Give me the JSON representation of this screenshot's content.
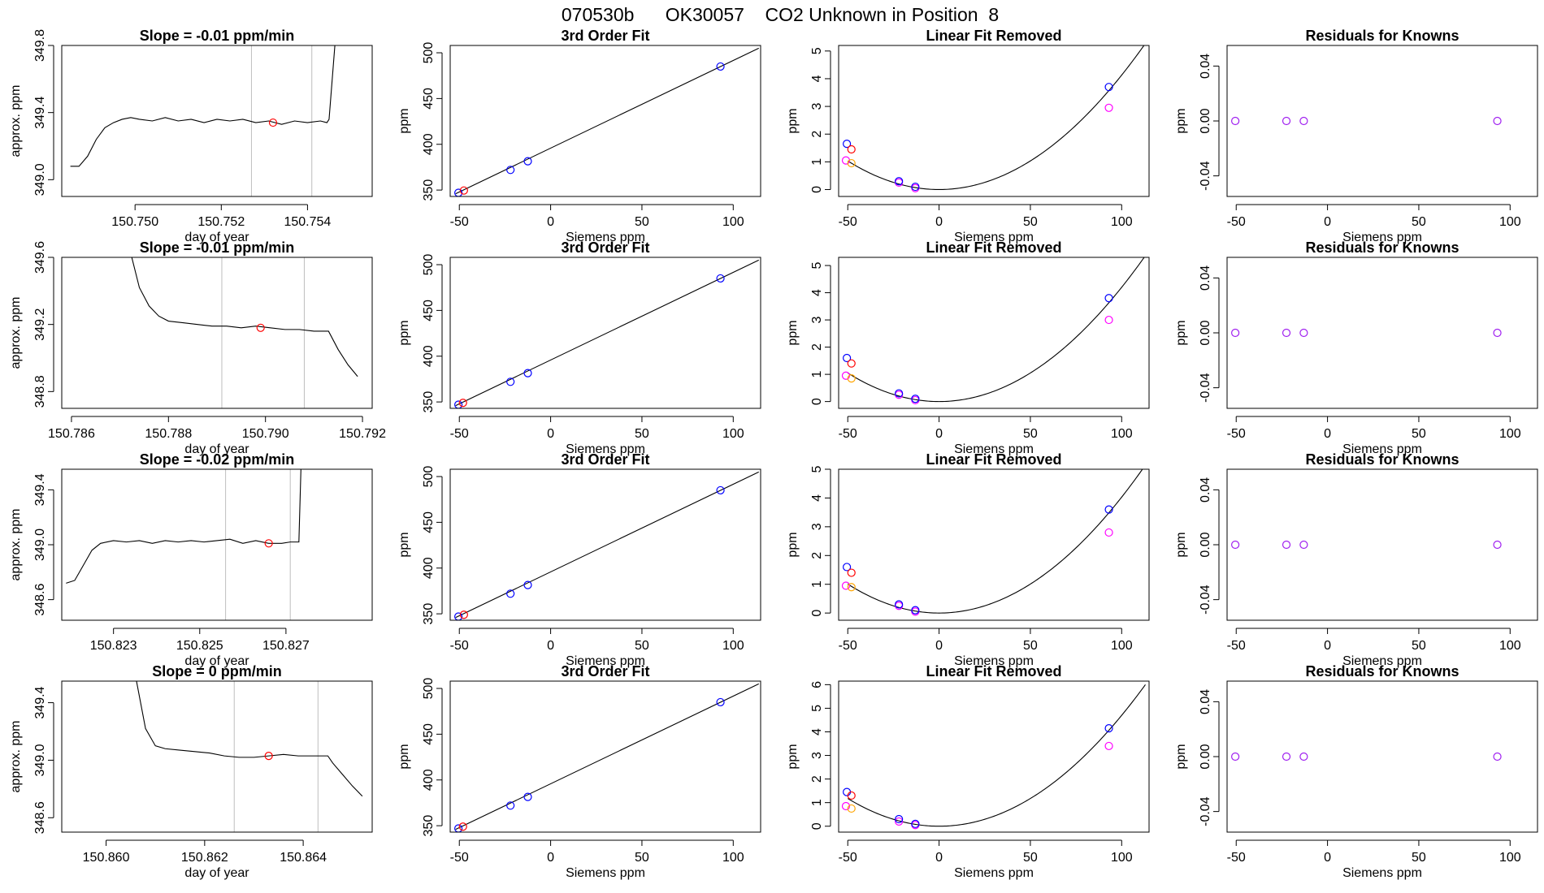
{
  "page_title": "070530b      OK30057    CO2 Unknown in Position  8",
  "colors": {
    "trace": "#000000",
    "window_line": "#bebebe",
    "standard": "#0000ff",
    "unknown": "#ff0000",
    "removed_fit": "#ff00ff",
    "orange_point": "#ffa500",
    "residual": "#a020f0"
  },
  "chart_data": [
    {
      "type": "line",
      "row": 1,
      "title": "Slope =  -0.01  ppm/min",
      "xlabel": "day of year",
      "ylabel": "approx. ppm",
      "xlim": [
        150.7483,
        150.7555
      ],
      "ylim": [
        348.9,
        349.8
      ],
      "xticks": [
        150.75,
        150.752,
        150.754
      ],
      "xtick_labels": [
        "150.750",
        "150.752",
        "150.754"
      ],
      "yticks": [
        349.0,
        349.4,
        349.8
      ],
      "ytick_labels": [
        "349.0",
        "349.4",
        "349.8"
      ],
      "window": [
        150.7527,
        150.7541
      ],
      "trace_x": [
        150.7485,
        150.7487,
        150.7489,
        150.7491,
        150.7493,
        150.7495,
        150.7497,
        150.7499,
        150.7501,
        150.7504,
        150.7507,
        150.751,
        150.7513,
        150.7516,
        150.7519,
        150.7522,
        150.7525,
        150.7528,
        150.7531,
        150.7534,
        150.7537,
        150.754,
        150.7543,
        150.75445,
        150.7545,
        150.75465
      ],
      "trace_y": [
        349.08,
        349.08,
        349.14,
        349.24,
        349.31,
        349.34,
        349.36,
        349.37,
        349.36,
        349.35,
        349.37,
        349.35,
        349.36,
        349.34,
        349.36,
        349.35,
        349.36,
        349.34,
        349.35,
        349.33,
        349.35,
        349.34,
        349.35,
        349.34,
        349.36,
        349.85
      ],
      "marker": {
        "x": 150.7532,
        "y": 349.34
      }
    },
    {
      "type": "line",
      "row": 2,
      "title": "Slope =  -0.01  ppm/min",
      "xlabel": "day of year",
      "ylabel": "approx. ppm",
      "xlim": [
        150.7858,
        150.7922
      ],
      "ylim": [
        348.7,
        349.6
      ],
      "xticks": [
        150.786,
        150.788,
        150.79,
        150.792
      ],
      "xtick_labels": [
        "150.786",
        "150.788",
        "150.790",
        "150.792"
      ],
      "yticks": [
        348.8,
        349.2,
        349.6
      ],
      "ytick_labels": [
        "348.8",
        "349.2",
        "349.6"
      ],
      "window": [
        150.7891,
        150.7908
      ],
      "trace_x": [
        150.7872,
        150.7874,
        150.7876,
        150.7878,
        150.788,
        150.7883,
        150.7886,
        150.7889,
        150.7892,
        150.7895,
        150.7898,
        150.7901,
        150.7904,
        150.7907,
        150.791,
        150.7913,
        150.7915,
        150.7917,
        150.7919
      ],
      "trace_y": [
        349.65,
        349.42,
        349.31,
        349.25,
        349.22,
        349.21,
        349.2,
        349.19,
        349.19,
        349.18,
        349.19,
        349.18,
        349.17,
        349.17,
        349.16,
        349.16,
        349.05,
        348.96,
        348.89
      ],
      "marker": {
        "x": 150.7899,
        "y": 349.18
      }
    },
    {
      "type": "line",
      "row": 3,
      "title": "Slope =  -0.02  ppm/min",
      "xlabel": "day of year",
      "ylabel": "approx. ppm",
      "xlim": [
        150.8218,
        150.829
      ],
      "ylim": [
        348.45,
        349.55
      ],
      "xticks": [
        150.823,
        150.825,
        150.827
      ],
      "xtick_labels": [
        "150.823",
        "150.825",
        "150.827"
      ],
      "yticks": [
        348.6,
        349.0,
        349.4
      ],
      "ytick_labels": [
        "348.6",
        "349.0",
        "349.4"
      ],
      "window": [
        150.8256,
        150.8271
      ],
      "trace_x": [
        150.8219,
        150.8221,
        150.8223,
        150.8225,
        150.8227,
        150.823,
        150.8233,
        150.8236,
        150.8239,
        150.8242,
        150.8245,
        150.8248,
        150.8251,
        150.8254,
        150.8257,
        150.826,
        150.8263,
        150.8266,
        150.8269,
        150.8271,
        150.8273,
        150.82735
      ],
      "trace_y": [
        348.72,
        348.74,
        348.85,
        348.96,
        349.01,
        349.03,
        349.02,
        349.03,
        349.01,
        349.03,
        349.02,
        349.03,
        349.02,
        349.03,
        349.04,
        349.01,
        349.03,
        349.01,
        349.01,
        349.02,
        349.02,
        349.58
      ],
      "marker": {
        "x": 150.8266,
        "y": 349.01
      }
    },
    {
      "type": "line",
      "row": 4,
      "title": "Slope =  0  ppm/min",
      "xlabel": "day of year",
      "ylabel": "approx. ppm",
      "xlim": [
        150.8591,
        150.8654
      ],
      "ylim": [
        348.5,
        349.55
      ],
      "xticks": [
        150.86,
        150.862,
        150.864
      ],
      "xtick_labels": [
        "150.860",
        "150.862",
        "150.864"
      ],
      "yticks": [
        348.6,
        349.0,
        349.4
      ],
      "ytick_labels": [
        "348.6",
        "349.0",
        "349.4"
      ],
      "window": [
        150.8626,
        150.8643
      ],
      "trace_x": [
        150.8606,
        150.8608,
        150.861,
        150.8612,
        150.8615,
        150.8618,
        150.8621,
        150.8624,
        150.8627,
        150.863,
        150.8633,
        150.8636,
        150.8639,
        150.8642,
        150.8645,
        150.8646,
        150.8648,
        150.865,
        150.8652
      ],
      "trace_y": [
        349.58,
        349.22,
        349.1,
        349.08,
        349.07,
        349.06,
        349.05,
        349.03,
        349.02,
        349.02,
        349.03,
        349.04,
        349.03,
        349.03,
        349.03,
        348.98,
        348.9,
        348.82,
        348.75
      ],
      "marker": {
        "x": 150.8633,
        "y": 349.03
      }
    },
    {
      "type": "scatter",
      "row": 1,
      "title": "3rd Order Fit",
      "xlabel": "Siemens ppm",
      "ylabel": "ppm",
      "xlim": [
        -55,
        115
      ],
      "ylim": [
        343,
        508
      ],
      "xticks": [
        -50,
        0,
        50,
        100
      ],
      "yticks": [
        350,
        400,
        450,
        500
      ],
      "fit_line": [
        [
          -52,
          346
        ],
        [
          114,
          505
        ]
      ],
      "standards": [
        [
          -50.5,
          347
        ],
        [
          -22,
          372
        ],
        [
          -12.5,
          381.5
        ],
        [
          93,
          485
        ]
      ],
      "unknowns": [
        [
          -47.5,
          349.5
        ]
      ]
    },
    {
      "type": "scatter",
      "row": 2,
      "title": "3rd Order Fit",
      "xlabel": "Siemens ppm",
      "ylabel": "ppm",
      "xlim": [
        -55,
        115
      ],
      "ylim": [
        343,
        508
      ],
      "xticks": [
        -50,
        0,
        50,
        100
      ],
      "yticks": [
        350,
        400,
        450,
        500
      ],
      "fit_line": [
        [
          -52,
          346
        ],
        [
          114,
          505
        ]
      ],
      "standards": [
        [
          -50.5,
          347
        ],
        [
          -22,
          372
        ],
        [
          -12.5,
          381.5
        ],
        [
          93,
          485
        ]
      ],
      "unknowns": [
        [
          -48,
          349
        ]
      ]
    },
    {
      "type": "scatter",
      "row": 3,
      "title": "3rd Order Fit",
      "xlabel": "Siemens ppm",
      "ylabel": "ppm",
      "xlim": [
        -55,
        115
      ],
      "ylim": [
        343,
        508
      ],
      "xticks": [
        -50,
        0,
        50,
        100
      ],
      "yticks": [
        350,
        400,
        450,
        500
      ],
      "fit_line": [
        [
          -52,
          346
        ],
        [
          114,
          505
        ]
      ],
      "standards": [
        [
          -50.5,
          347
        ],
        [
          -22,
          372
        ],
        [
          -12.5,
          381.5
        ],
        [
          93,
          485
        ]
      ],
      "unknowns": [
        [
          -47.5,
          349
        ]
      ]
    },
    {
      "type": "scatter",
      "row": 4,
      "title": "3rd Order Fit",
      "xlabel": "Siemens ppm",
      "ylabel": "ppm",
      "xlim": [
        -55,
        115
      ],
      "ylim": [
        343,
        508
      ],
      "xticks": [
        -50,
        0,
        50,
        100
      ],
      "yticks": [
        350,
        400,
        450,
        500
      ],
      "fit_line": [
        [
          -52,
          346
        ],
        [
          114,
          505
        ]
      ],
      "standards": [
        [
          -50.5,
          347
        ],
        [
          -22,
          372
        ],
        [
          -12.5,
          381.5
        ],
        [
          93,
          485
        ]
      ],
      "unknowns": [
        [
          -48,
          349
        ]
      ]
    },
    {
      "type": "scatter",
      "row": 1,
      "title": "Linear Fit Removed",
      "xlabel": "Siemens ppm",
      "ylabel": "ppm",
      "xlim": [
        -55,
        115
      ],
      "ylim": [
        -0.25,
        5.2
      ],
      "xticks": [
        -50,
        0,
        50,
        100
      ],
      "yticks": [
        0,
        1,
        2,
        3,
        4,
        5
      ],
      "curve_coef": 0.000413,
      "curve_x": [
        -50,
        113
      ],
      "standards": [
        [
          -50.5,
          1.65
        ],
        [
          -22,
          0.3
        ],
        [
          -13,
          0.1
        ],
        [
          93,
          3.7
        ]
      ],
      "unknowns": [
        [
          -48,
          1.45
        ]
      ],
      "removed": [
        [
          -51,
          1.05
        ],
        [
          -22,
          0.25
        ],
        [
          -13,
          0.05
        ],
        [
          93,
          2.95
        ]
      ],
      "orange": [
        [
          -48,
          0.95
        ]
      ]
    },
    {
      "type": "scatter",
      "row": 2,
      "title": "Linear Fit Removed",
      "xlabel": "Siemens ppm",
      "ylabel": "ppm",
      "xlim": [
        -55,
        115
      ],
      "ylim": [
        -0.25,
        5.3
      ],
      "xticks": [
        -50,
        0,
        50,
        100
      ],
      "yticks": [
        0,
        1,
        2,
        3,
        4,
        5
      ],
      "curve_coef": 0.00042,
      "curve_x": [
        -50,
        113
      ],
      "standards": [
        [
          -50.5,
          1.6
        ],
        [
          -22,
          0.3
        ],
        [
          -13,
          0.1
        ],
        [
          93,
          3.8
        ]
      ],
      "unknowns": [
        [
          -48,
          1.4
        ]
      ],
      "removed": [
        [
          -51,
          0.95
        ],
        [
          -22,
          0.25
        ],
        [
          -13,
          0.05
        ],
        [
          93,
          3.0
        ]
      ],
      "orange": [
        [
          -48,
          0.85
        ]
      ]
    },
    {
      "type": "scatter",
      "row": 3,
      "title": "Linear Fit Removed",
      "xlabel": "Siemens ppm",
      "ylabel": "ppm",
      "xlim": [
        -55,
        115
      ],
      "ylim": [
        -0.25,
        5.0
      ],
      "xticks": [
        -50,
        0,
        50,
        100
      ],
      "yticks": [
        0,
        1,
        2,
        3,
        4,
        5
      ],
      "curve_coef": 0.000403,
      "curve_x": [
        -50,
        113
      ],
      "standards": [
        [
          -50.5,
          1.6
        ],
        [
          -22,
          0.3
        ],
        [
          -13,
          0.1
        ],
        [
          93,
          3.6
        ]
      ],
      "unknowns": [
        [
          -48,
          1.4
        ]
      ],
      "removed": [
        [
          -51,
          0.95
        ],
        [
          -22,
          0.25
        ],
        [
          -13,
          0.05
        ],
        [
          93,
          2.8
        ]
      ],
      "orange": [
        [
          -48,
          0.9
        ]
      ]
    },
    {
      "type": "scatter",
      "row": 4,
      "title": "Linear Fit Removed",
      "xlabel": "Siemens ppm",
      "ylabel": "ppm",
      "xlim": [
        -55,
        115
      ],
      "ylim": [
        -0.25,
        6.15
      ],
      "xticks": [
        -50,
        0,
        50,
        100
      ],
      "yticks": [
        0,
        1,
        2,
        3,
        4,
        5,
        6
      ],
      "curve_coef": 0.00047,
      "curve_x": [
        -50,
        113
      ],
      "standards": [
        [
          -50.5,
          1.45
        ],
        [
          -22,
          0.3
        ],
        [
          -13,
          0.1
        ],
        [
          93,
          4.15
        ]
      ],
      "unknowns": [
        [
          -48,
          1.3
        ]
      ],
      "removed": [
        [
          -51,
          0.85
        ],
        [
          -22,
          0.2
        ],
        [
          -13,
          0.05
        ],
        [
          93,
          3.4
        ]
      ],
      "orange": [
        [
          -48,
          0.75
        ]
      ]
    },
    {
      "type": "scatter",
      "row": 1,
      "title": "Residuals for Knowns",
      "xlabel": "Siemens ppm",
      "ylabel": "ppm",
      "xlim": [
        -55,
        115
      ],
      "ylim": [
        -0.055,
        0.055
      ],
      "xticks": [
        -50,
        0,
        50,
        100
      ],
      "yticks": [
        -0.04,
        0,
        0.04
      ],
      "ytick_labels": [
        "-0.04",
        "0.00",
        "0.04"
      ],
      "points": [
        [
          -50.5,
          0
        ],
        [
          -22.5,
          0
        ],
        [
          -13,
          0
        ],
        [
          93,
          0
        ]
      ]
    },
    {
      "type": "scatter",
      "row": 2,
      "title": "Residuals for Knowns",
      "xlabel": "Siemens ppm",
      "ylabel": "ppm",
      "xlim": [
        -55,
        115
      ],
      "ylim": [
        -0.055,
        0.055
      ],
      "xticks": [
        -50,
        0,
        50,
        100
      ],
      "yticks": [
        -0.04,
        0,
        0.04
      ],
      "ytick_labels": [
        "-0.04",
        "0.00",
        "0.04"
      ],
      "points": [
        [
          -50.5,
          0
        ],
        [
          -22.5,
          0
        ],
        [
          -13,
          0
        ],
        [
          93,
          0
        ]
      ]
    },
    {
      "type": "scatter",
      "row": 3,
      "title": "Residuals for Knowns",
      "xlabel": "Siemens ppm",
      "ylabel": "ppm",
      "xlim": [
        -55,
        115
      ],
      "ylim": [
        -0.055,
        0.055
      ],
      "xticks": [
        -50,
        0,
        50,
        100
      ],
      "yticks": [
        -0.04,
        0,
        0.04
      ],
      "ytick_labels": [
        "-0.04",
        "0.00",
        "0.04"
      ],
      "points": [
        [
          -50.5,
          0
        ],
        [
          -22.5,
          0
        ],
        [
          -13,
          0
        ],
        [
          93,
          0
        ]
      ]
    },
    {
      "type": "scatter",
      "row": 4,
      "title": "Residuals for Knowns",
      "xlabel": "Siemens ppm",
      "ylabel": "ppm",
      "xlim": [
        -55,
        115
      ],
      "ylim": [
        -0.055,
        0.055
      ],
      "xticks": [
        -50,
        0,
        50,
        100
      ],
      "yticks": [
        -0.04,
        0,
        0.04
      ],
      "ytick_labels": [
        "-0.04",
        "0.00",
        "0.04"
      ],
      "points": [
        [
          -50.5,
          0
        ],
        [
          -22.5,
          0
        ],
        [
          -13,
          0
        ],
        [
          93,
          0
        ]
      ]
    }
  ]
}
